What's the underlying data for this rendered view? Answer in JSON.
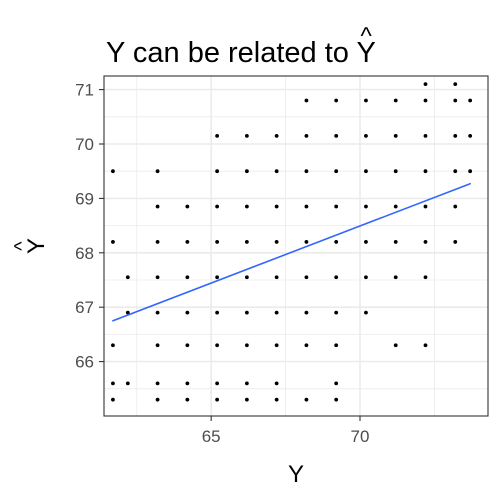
{
  "chart_data": {
    "type": "scatter",
    "title": "Y can be related to Ŷ",
    "title_parts": {
      "text": "Y can be related to ",
      "variable": "Y",
      "accent": "^"
    },
    "xlabel": "Y",
    "ylabel": "Ŷ",
    "ylabel_parts": {
      "variable": "Y",
      "accent": "^"
    },
    "xlim": [
      61.4,
      74.3
    ],
    "ylim": [
      65.0,
      71.25
    ],
    "xticks": [
      65,
      70
    ],
    "yticks": [
      66,
      67,
      68,
      69,
      70,
      71
    ],
    "grid": true,
    "point_color": "#000000",
    "line_color": "#3366FF",
    "panel_border_color": "#333333",
    "grid_color": "#EBEBEB",
    "trend_line": {
      "x": [
        61.7,
        73.7
      ],
      "y": [
        66.75,
        69.27
      ]
    },
    "points": [
      {
        "x": 61.7,
        "y": 69.5
      },
      {
        "x": 61.7,
        "y": 68.2
      },
      {
        "x": 61.7,
        "y": 66.3
      },
      {
        "x": 61.7,
        "y": 65.6
      },
      {
        "x": 61.7,
        "y": 65.3
      },
      {
        "x": 62.2,
        "y": 67.55
      },
      {
        "x": 62.2,
        "y": 66.9
      },
      {
        "x": 62.2,
        "y": 65.6
      },
      {
        "x": 63.2,
        "y": 69.5
      },
      {
        "x": 63.2,
        "y": 68.85
      },
      {
        "x": 63.2,
        "y": 68.2
      },
      {
        "x": 63.2,
        "y": 67.55
      },
      {
        "x": 63.2,
        "y": 66.9
      },
      {
        "x": 63.2,
        "y": 66.3
      },
      {
        "x": 63.2,
        "y": 65.6
      },
      {
        "x": 63.2,
        "y": 65.3
      },
      {
        "x": 64.2,
        "y": 68.85
      },
      {
        "x": 64.2,
        "y": 68.2
      },
      {
        "x": 64.2,
        "y": 67.55
      },
      {
        "x": 64.2,
        "y": 66.9
      },
      {
        "x": 64.2,
        "y": 66.3
      },
      {
        "x": 64.2,
        "y": 65.6
      },
      {
        "x": 64.2,
        "y": 65.3
      },
      {
        "x": 65.2,
        "y": 70.15
      },
      {
        "x": 65.2,
        "y": 69.5
      },
      {
        "x": 65.2,
        "y": 68.85
      },
      {
        "x": 65.2,
        "y": 68.2
      },
      {
        "x": 65.2,
        "y": 67.55
      },
      {
        "x": 65.2,
        "y": 66.9
      },
      {
        "x": 65.2,
        "y": 66.3
      },
      {
        "x": 65.2,
        "y": 65.6
      },
      {
        "x": 65.2,
        "y": 65.3
      },
      {
        "x": 66.2,
        "y": 70.15
      },
      {
        "x": 66.2,
        "y": 69.5
      },
      {
        "x": 66.2,
        "y": 68.85
      },
      {
        "x": 66.2,
        "y": 68.2
      },
      {
        "x": 66.2,
        "y": 67.55
      },
      {
        "x": 66.2,
        "y": 66.9
      },
      {
        "x": 66.2,
        "y": 66.3
      },
      {
        "x": 66.2,
        "y": 65.6
      },
      {
        "x": 66.2,
        "y": 65.3
      },
      {
        "x": 67.2,
        "y": 70.15
      },
      {
        "x": 67.2,
        "y": 69.5
      },
      {
        "x": 67.2,
        "y": 68.85
      },
      {
        "x": 67.2,
        "y": 68.2
      },
      {
        "x": 67.2,
        "y": 67.55
      },
      {
        "x": 67.2,
        "y": 66.9
      },
      {
        "x": 67.2,
        "y": 66.3
      },
      {
        "x": 67.2,
        "y": 65.6
      },
      {
        "x": 67.2,
        "y": 65.3
      },
      {
        "x": 68.2,
        "y": 70.8
      },
      {
        "x": 68.2,
        "y": 70.15
      },
      {
        "x": 68.2,
        "y": 69.5
      },
      {
        "x": 68.2,
        "y": 68.85
      },
      {
        "x": 68.2,
        "y": 68.2
      },
      {
        "x": 68.2,
        "y": 67.55
      },
      {
        "x": 68.2,
        "y": 66.9
      },
      {
        "x": 68.2,
        "y": 66.3
      },
      {
        "x": 68.2,
        "y": 65.3
      },
      {
        "x": 69.2,
        "y": 70.8
      },
      {
        "x": 69.2,
        "y": 70.15
      },
      {
        "x": 69.2,
        "y": 69.5
      },
      {
        "x": 69.2,
        "y": 68.85
      },
      {
        "x": 69.2,
        "y": 68.2
      },
      {
        "x": 69.2,
        "y": 67.55
      },
      {
        "x": 69.2,
        "y": 66.9
      },
      {
        "x": 69.2,
        "y": 66.3
      },
      {
        "x": 69.2,
        "y": 65.6
      },
      {
        "x": 69.2,
        "y": 65.3
      },
      {
        "x": 70.2,
        "y": 70.8
      },
      {
        "x": 70.2,
        "y": 70.15
      },
      {
        "x": 70.2,
        "y": 69.5
      },
      {
        "x": 70.2,
        "y": 68.85
      },
      {
        "x": 70.2,
        "y": 68.2
      },
      {
        "x": 70.2,
        "y": 67.55
      },
      {
        "x": 70.2,
        "y": 66.9
      },
      {
        "x": 71.2,
        "y": 70.8
      },
      {
        "x": 71.2,
        "y": 70.15
      },
      {
        "x": 71.2,
        "y": 69.5
      },
      {
        "x": 71.2,
        "y": 68.85
      },
      {
        "x": 71.2,
        "y": 68.2
      },
      {
        "x": 71.2,
        "y": 67.55
      },
      {
        "x": 71.2,
        "y": 66.3
      },
      {
        "x": 72.2,
        "y": 71.1
      },
      {
        "x": 72.2,
        "y": 70.8
      },
      {
        "x": 72.2,
        "y": 70.15
      },
      {
        "x": 72.2,
        "y": 69.5
      },
      {
        "x": 72.2,
        "y": 68.85
      },
      {
        "x": 72.2,
        "y": 68.2
      },
      {
        "x": 72.2,
        "y": 67.55
      },
      {
        "x": 72.2,
        "y": 66.3
      },
      {
        "x": 73.2,
        "y": 71.1
      },
      {
        "x": 73.2,
        "y": 70.8
      },
      {
        "x": 73.2,
        "y": 70.15
      },
      {
        "x": 73.2,
        "y": 69.5
      },
      {
        "x": 73.2,
        "y": 68.85
      },
      {
        "x": 73.2,
        "y": 68.2
      },
      {
        "x": 73.7,
        "y": 70.8
      },
      {
        "x": 73.7,
        "y": 70.15
      },
      {
        "x": 73.7,
        "y": 69.5
      }
    ]
  }
}
